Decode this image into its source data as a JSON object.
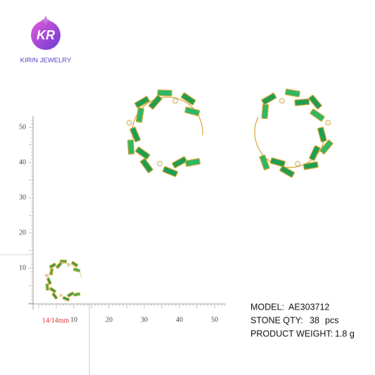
{
  "logo": {
    "monogram": "KR",
    "brand": "KIRIN JEWELRY"
  },
  "ruler": {
    "x_ticks": [
      10,
      20,
      30,
      40,
      50
    ],
    "y_ticks": [
      10,
      20,
      30,
      40,
      50
    ],
    "size_label": "14/14mm"
  },
  "specs": [
    {
      "label": "MODEL:",
      "value": "AE303712"
    },
    {
      "label": "STONE QTY:",
      "value": 38,
      "unit": "pcs"
    },
    {
      "label": "PRODUCT WEIGHT:",
      "value": "1.8 g"
    }
  ]
}
